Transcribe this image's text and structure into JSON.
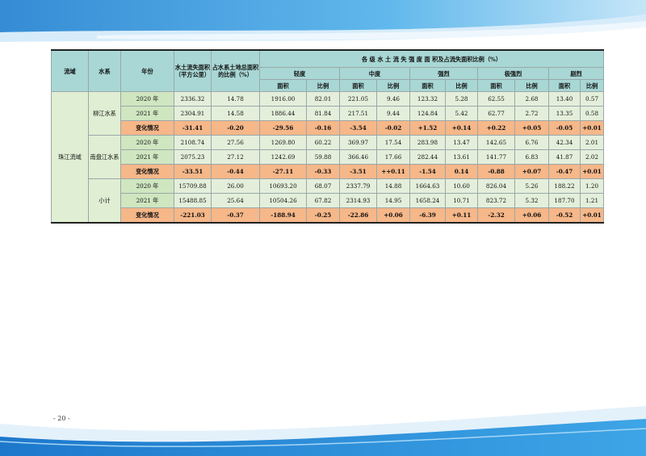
{
  "page_number": "- 20 -",
  "header": {
    "basin": "流域",
    "system": "水系",
    "year": "年份",
    "erosion_area": "水土流失面积（平方公里）",
    "ratio": "占水系土地总面积的比例（%）",
    "intensity_group": "各 级 水 土 流 失 强 度 面 积及占流失面积比例（%）",
    "levels": [
      "轻度",
      "中度",
      "强烈",
      "极强烈",
      "剧烈"
    ],
    "area": "面积",
    "proportion": "比例"
  },
  "basin_name": "珠江流域",
  "systems": [
    {
      "name": "柳江水系",
      "rows": [
        {
          "year": "2020 年",
          "area": "2336.32",
          "ratio": "14.78",
          "vals": [
            "1916.00",
            "82.01",
            "221.05",
            "9.46",
            "123.32",
            "5.28",
            "62.55",
            "2.68",
            "13.40",
            "0.57"
          ]
        },
        {
          "year": "2021 年",
          "area": "2304.91",
          "ratio": "14.58",
          "vals": [
            "1886.44",
            "81.84",
            "217.51",
            "9.44",
            "124.84",
            "5.42",
            "62.77",
            "2.72",
            "13.35",
            "0.58"
          ]
        },
        {
          "year": "变化情况",
          "area": "-31.41",
          "ratio": "-0.20",
          "vals": [
            "-29.56",
            "-0.16",
            "-3.54",
            "-0.02",
            "+1.52",
            "+0.14",
            "+0.22",
            "+0.05",
            "-0.05",
            "+0.01"
          ]
        }
      ]
    },
    {
      "name": "南盘江水系",
      "rows": [
        {
          "year": "2020 年",
          "area": "2108.74",
          "ratio": "27.56",
          "vals": [
            "1269.80",
            "60.22",
            "369.97",
            "17.54",
            "283.98",
            "13.47",
            "142.65",
            "6.76",
            "42.34",
            "2.01"
          ]
        },
        {
          "year": "2021 年",
          "area": "2075.23",
          "ratio": "27.12",
          "vals": [
            "1242.69",
            "59.88",
            "366.46",
            "17.66",
            "282.44",
            "13.61",
            "141.77",
            "6.83",
            "41.87",
            "2.02"
          ]
        },
        {
          "year": "变化情况",
          "area": "-33.51",
          "ratio": "-0.44",
          "vals": [
            "-27.11",
            "-0.33",
            "-3.51",
            "++0.11",
            "-1.54",
            "0.14",
            "-0.88",
            "+0.07",
            "-0.47",
            "+0.01"
          ]
        }
      ]
    },
    {
      "name": "小计",
      "rows": [
        {
          "year": "2020 年",
          "area": "15709.88",
          "ratio": "26.00",
          "vals": [
            "10693.20",
            "68.07",
            "2337.79",
            "14.88",
            "1664.63",
            "10.60",
            "826.04",
            "5.26",
            "188.22",
            "1.20"
          ]
        },
        {
          "year": "2021 年",
          "area": "15488.85",
          "ratio": "25.64",
          "vals": [
            "10504.26",
            "67.82",
            "2314.93",
            "14.95",
            "1658.24",
            "10.71",
            "823.72",
            "5.32",
            "187.70",
            "1.21"
          ]
        },
        {
          "year": "变化情况",
          "area": "-221.03",
          "ratio": "-0.37",
          "vals": [
            "-188.94",
            "-0.25",
            "-22.86",
            "+0.06",
            "-6.39",
            "+0.11",
            "-2.32",
            "+0.06",
            "-0.52",
            "+0.01"
          ]
        }
      ]
    }
  ],
  "colors": {
    "header_bg": "#a8d7d5",
    "label_bg": "#cfe6c0",
    "value_bg": "#e4efdb",
    "change_bg": "#f6b789",
    "decor_blue": "#2f8fd8"
  }
}
